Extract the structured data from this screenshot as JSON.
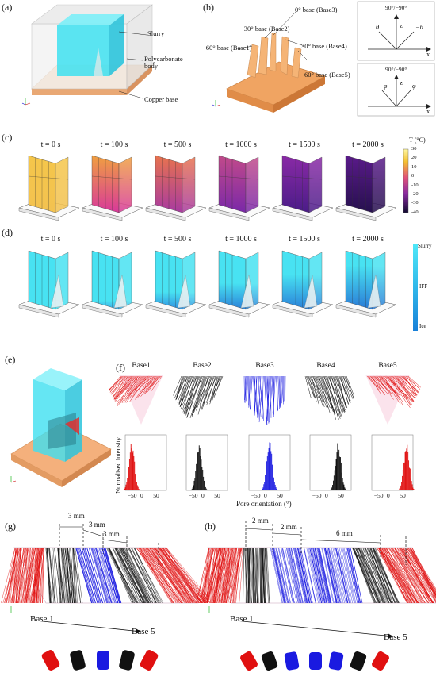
{
  "panels": {
    "a": {
      "label": "(a)",
      "annotations": [
        "Slurry",
        "Polycarbonate body",
        "Copper base"
      ]
    },
    "b": {
      "label": "(b)",
      "annotations": [
        "0° base (Base3)",
        "−30° base (Base2)",
        "−60° base (Base1)",
        "30° base (Base4)",
        "60° base (Base5)"
      ],
      "inset1": {
        "top": "90°/−90°",
        "z": "z",
        "x": "x",
        "theta": "θ",
        "neg_theta": "−θ"
      },
      "inset2": {
        "top": "90°/−90°",
        "z": "z",
        "x": "x",
        "neg_phi": "−φ",
        "phi": "φ"
      }
    },
    "c": {
      "label": "(c)",
      "times": [
        "t = 0 s",
        "t = 100 s",
        "t = 500 s",
        "t = 1000 s",
        "t = 1500 s",
        "t = 2000 s"
      ],
      "colorbar": {
        "title": "T (°C)",
        "ticks": [
          "30",
          "20",
          "10",
          "0",
          "-10",
          "-20",
          "-30",
          "-40"
        ]
      }
    },
    "d": {
      "label": "(d)",
      "times": [
        "t = 0 s",
        "t = 100 s",
        "t = 500 s",
        "t = 1000 s",
        "t = 1500 s",
        "t = 2000 s"
      ],
      "colorbar": {
        "ticks": [
          "Slurry",
          "IFF",
          "Ice"
        ]
      }
    },
    "e": {
      "label": "(e)"
    },
    "f": {
      "label": "(f)",
      "bases": [
        "Base1",
        "Base2",
        "Base3",
        "Base4",
        "Base5"
      ],
      "ylabel": "Normalised intensity",
      "xlabel": "Pore orientation (°)",
      "xticks": [
        "−50",
        "0",
        "50"
      ]
    },
    "g": {
      "label": "(g)",
      "dims": [
        "3 mm",
        "3 mm",
        "3 mm"
      ],
      "start": "Base 1",
      "end": "Base 5"
    },
    "h": {
      "label": "(h)",
      "dims": [
        "2 mm",
        "2 mm",
        "6 mm"
      ],
      "start": "Base 1",
      "end": "Base 5"
    }
  },
  "colors": {
    "slurry": "#39d6e6",
    "ice": "#1c86d8",
    "copper": "#f0b07a",
    "red": "#e01010",
    "blue": "#1a1ae0",
    "black": "#111111"
  }
}
